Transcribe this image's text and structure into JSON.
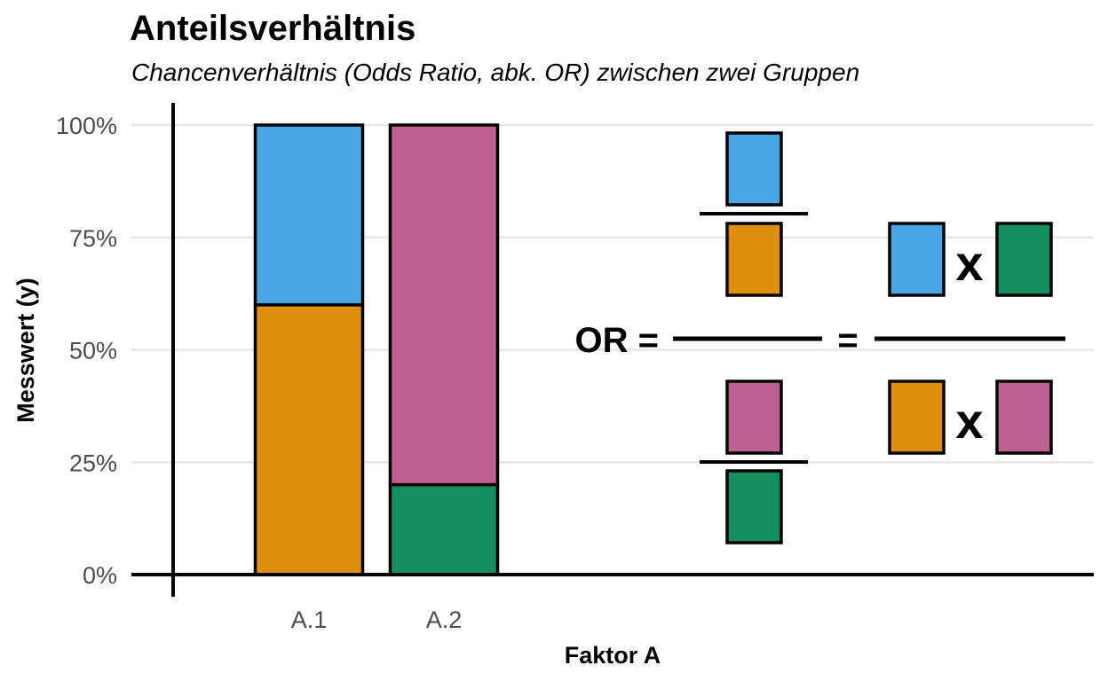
{
  "chart_data": {
    "type": "bar",
    "stacked": true,
    "title": "Anteilsverhältnis",
    "subtitle": "Chancenverhältnis (Odds Ratio, abk. OR) zwischen zwei Gruppen",
    "xlabel": "Faktor A",
    "ylabel": "Messwert (y)",
    "categories": [
      "A.1",
      "A.2"
    ],
    "ylim": [
      0,
      1
    ],
    "yticks": [
      0,
      0.25,
      0.5,
      0.75,
      1
    ],
    "ytick_labels": [
      "0%",
      "25%",
      "50%",
      "75%",
      "100%"
    ],
    "grid": "horizontal",
    "bars": [
      {
        "category": "A.1",
        "segments": [
          {
            "value": 0.6,
            "color": "#DE8F0A"
          },
          {
            "value": 0.4,
            "color": "#4AA5E3"
          }
        ]
      },
      {
        "category": "A.2",
        "segments": [
          {
            "value": 0.2,
            "color": "#168F60"
          },
          {
            "value": 0.8,
            "color": "#BE6193"
          }
        ]
      }
    ],
    "annotation": {
      "label": "OR =",
      "equals": "=",
      "times": "x",
      "colors": {
        "blue": "#4AA5E3",
        "orange": "#DE8F0A",
        "pink": "#BE6193",
        "green": "#168F60"
      }
    }
  }
}
